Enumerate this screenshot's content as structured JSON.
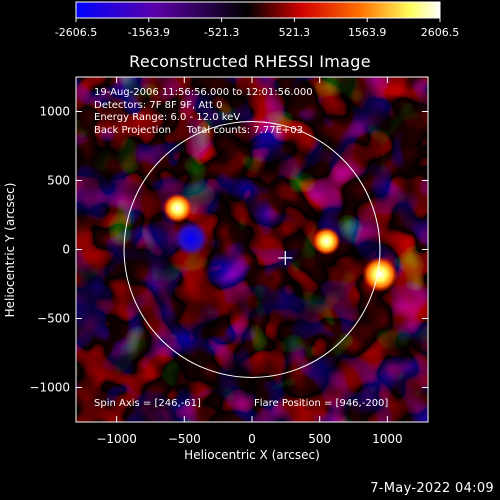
{
  "colorbar": {
    "ticks": [
      -2606.5,
      -1563.9,
      -521.3,
      521.3,
      1563.9,
      2606.5
    ],
    "tick_labels": [
      "-2606.5",
      "-1563.9",
      "-521.3",
      "521.3",
      "1563.9",
      "2606.5"
    ]
  },
  "header": {
    "title": "Reconstructed RHESSI Image"
  },
  "info": {
    "line1": "19-Aug-2006 11:56:56.000 to 12:01:56.000",
    "line2": "Detectors: 7F 8F 9F, Att 0",
    "line3": "Energy Range: 6.0 - 12.0 keV",
    "line4": "Back Projection     Total counts: 7.77E+03"
  },
  "footer": {
    "spin_axis": "Spin Axis = [246,-61]",
    "flare_position": "Flare Position = [946,-200]",
    "timestamp": "7-May-2022 04:09"
  },
  "chart_data": {
    "type": "heatmap",
    "title": "Reconstructed RHESSI Image",
    "xlabel": "Heliocentric X (arcsec)",
    "ylabel": "Heliocentric Y (arcsec)",
    "xlim": [
      -1300,
      1300
    ],
    "ylim": [
      -1250,
      1250
    ],
    "x_ticks": [
      -1000,
      -500,
      0,
      500,
      1000
    ],
    "y_ticks": [
      -1000,
      -500,
      0,
      500,
      1000
    ],
    "x_tick_labels": [
      "−1000",
      "−500",
      "0",
      "500",
      "1000"
    ],
    "y_tick_labels": [
      "−1000",
      "−500",
      "0",
      "500",
      "1000"
    ],
    "zlim": [
      -2606.5,
      2606.5
    ],
    "colormap": [
      "#0000ff",
      "#5a00a8",
      "#000000",
      "#d00000",
      "#ff7000",
      "#ffff60",
      "#ffffff"
    ],
    "solar_disk": {
      "center": [
        0,
        0
      ],
      "radius_arcsec": 945
    },
    "spin_axis": [
      246,
      -61
    ],
    "flare_position": [
      946,
      -200
    ],
    "features": [
      {
        "label": "brightest source",
        "x": 946,
        "y": -180,
        "value": 2600
      },
      {
        "label": "bright source",
        "x": -550,
        "y": 300,
        "value": 1800
      },
      {
        "label": "bright source",
        "x": 550,
        "y": 60,
        "value": 1600
      },
      {
        "label": "negative minimum",
        "x": -450,
        "y": 80,
        "value": -2500
      }
    ]
  }
}
